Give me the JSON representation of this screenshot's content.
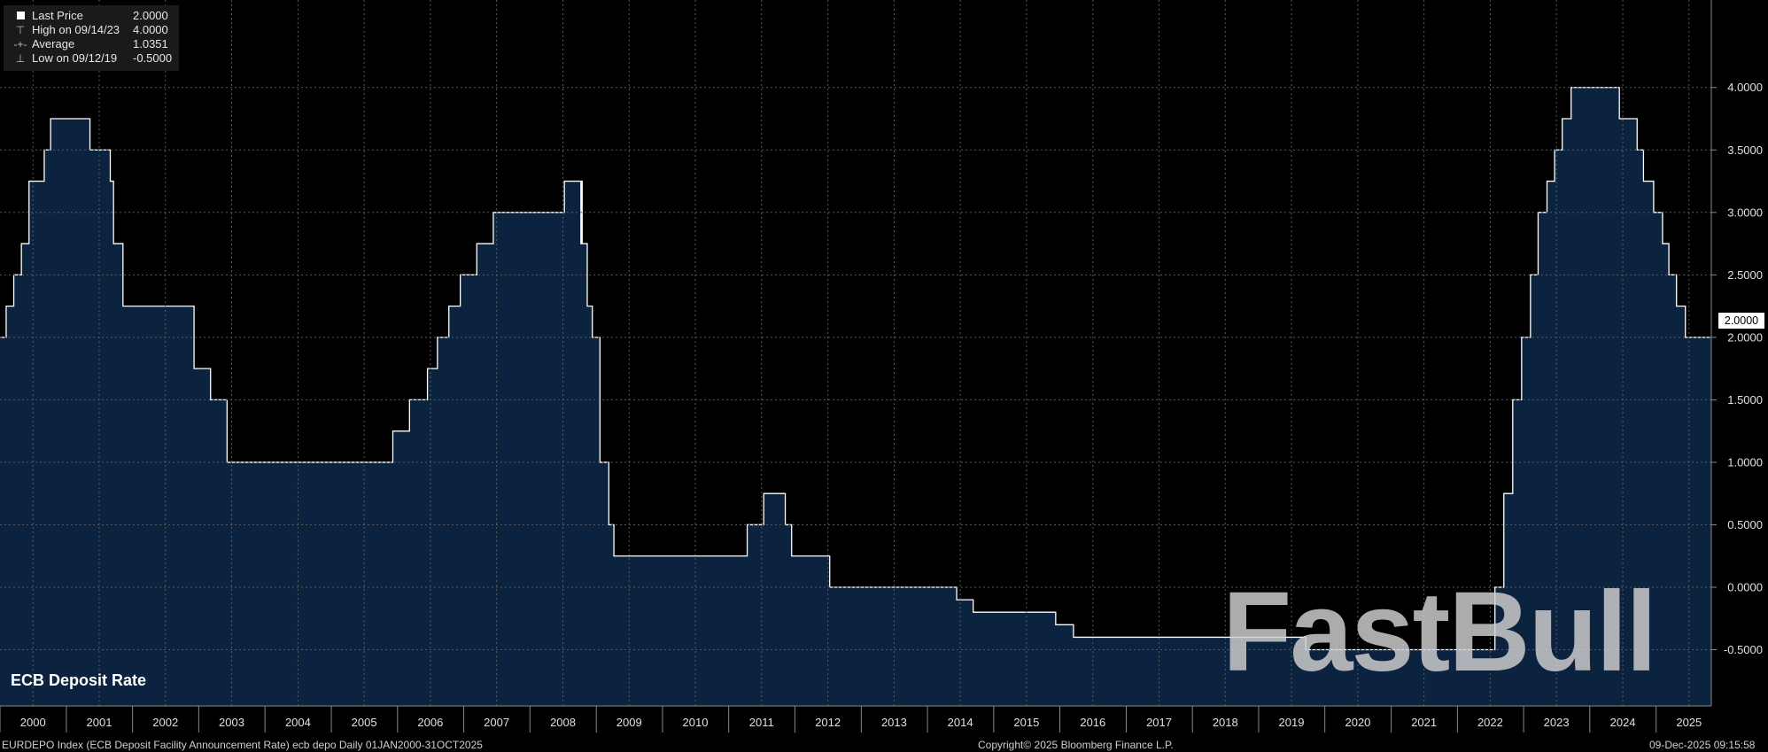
{
  "legend": {
    "last_price_label": "Last Price",
    "last_price_value": "2.0000",
    "high_label": "High on 09/14/23",
    "high_value": "4.0000",
    "average_label": "Average",
    "average_value": "1.0351",
    "low_label": "Low on 09/12/19",
    "low_value": "-0.5000"
  },
  "chart_label": "ECB Deposit Rate",
  "watermark": "FastBull",
  "last_tag": "2.0000",
  "footer": {
    "left": "EURDEPO Index (ECB Deposit Facility Announcement Rate) ecb depo Daily 01JAN2000-31OCT2025",
    "center": "Copyright© 2025 Bloomberg Finance L.P.",
    "right": "09-Dec-2025 09:15:58"
  },
  "colors": {
    "fill": "#0c2340",
    "line": "#ffffff",
    "grid": "#5a5a5a",
    "background": "#000000"
  },
  "chart_data": {
    "type": "area",
    "x_range": [
      "2000-01-01",
      "2025-10-31"
    ],
    "ylim": [
      -0.95,
      4.7
    ],
    "yticks": [
      -0.5,
      0.0,
      0.5,
      1.0,
      1.5,
      2.0,
      2.5,
      3.0,
      3.5,
      4.0
    ],
    "ytick_labels": [
      "-0.5000",
      "0.0000",
      "0.5000",
      "1.0000",
      "1.5000",
      "2.0000",
      "2.5000",
      "3.0000",
      "3.5000",
      "4.0000"
    ],
    "x_labels": [
      "2000",
      "2001",
      "2002",
      "2003",
      "2004",
      "2005",
      "2006",
      "2007",
      "2008",
      "2009",
      "2010",
      "2011",
      "2012",
      "2013",
      "2014",
      "2015",
      "2016",
      "2017",
      "2018",
      "2019",
      "2020",
      "2021",
      "2022",
      "2023",
      "2024",
      "2025"
    ],
    "grid": true,
    "series": [
      {
        "values": [
          [
            "2000-01-01",
            2.0
          ],
          [
            "2000-02-04",
            2.25
          ],
          [
            "2000-03-17",
            2.5
          ],
          [
            "2000-04-28",
            2.75
          ],
          [
            "2000-06-09",
            3.25
          ],
          [
            "2000-09-01",
            3.5
          ],
          [
            "2000-10-06",
            3.75
          ],
          [
            "2001-05-11",
            3.5
          ],
          [
            "2001-08-31",
            3.25
          ],
          [
            "2001-09-18",
            2.75
          ],
          [
            "2001-11-09",
            2.25
          ],
          [
            "2002-12-06",
            1.75
          ],
          [
            "2003-03-07",
            1.5
          ],
          [
            "2003-06-06",
            1.0
          ],
          [
            "2005-12-06",
            1.25
          ],
          [
            "2006-03-08",
            1.5
          ],
          [
            "2006-06-15",
            1.75
          ],
          [
            "2006-08-09",
            2.0
          ],
          [
            "2006-10-11",
            2.25
          ],
          [
            "2006-12-13",
            2.5
          ],
          [
            "2007-03-14",
            2.75
          ],
          [
            "2007-06-13",
            3.0
          ],
          [
            "2008-07-09",
            3.25
          ],
          [
            "2008-10-08",
            2.75
          ],
          [
            "2008-10-09",
            3.25
          ],
          [
            "2008-10-15",
            2.75
          ],
          [
            "2008-11-12",
            2.25
          ],
          [
            "2008-12-10",
            2.0
          ],
          [
            "2009-01-21",
            1.0
          ],
          [
            "2009-03-11",
            0.5
          ],
          [
            "2009-04-08",
            0.25
          ],
          [
            "2011-04-13",
            0.5
          ],
          [
            "2011-07-13",
            0.75
          ],
          [
            "2011-11-09",
            0.5
          ],
          [
            "2011-12-14",
            0.25
          ],
          [
            "2012-07-11",
            0.0
          ],
          [
            "2014-06-11",
            -0.1
          ],
          [
            "2014-09-10",
            -0.2
          ],
          [
            "2015-12-09",
            -0.3
          ],
          [
            "2016-03-16",
            -0.4
          ],
          [
            "2019-09-18",
            -0.5
          ],
          [
            "2022-07-27",
            0.0
          ],
          [
            "2022-09-14",
            0.75
          ],
          [
            "2022-11-02",
            1.5
          ],
          [
            "2022-12-21",
            2.0
          ],
          [
            "2023-02-08",
            2.5
          ],
          [
            "2023-03-22",
            3.0
          ],
          [
            "2023-05-10",
            3.25
          ],
          [
            "2023-06-21",
            3.5
          ],
          [
            "2023-08-02",
            3.75
          ],
          [
            "2023-09-20",
            4.0
          ],
          [
            "2024-06-12",
            3.75
          ],
          [
            "2024-09-18",
            3.5
          ],
          [
            "2024-10-23",
            3.25
          ],
          [
            "2024-12-18",
            3.0
          ],
          [
            "2025-02-05",
            2.75
          ],
          [
            "2025-03-12",
            2.5
          ],
          [
            "2025-04-23",
            2.25
          ],
          [
            "2025-06-11",
            2.0
          ],
          [
            "2025-10-31",
            2.0
          ]
        ]
      }
    ]
  }
}
